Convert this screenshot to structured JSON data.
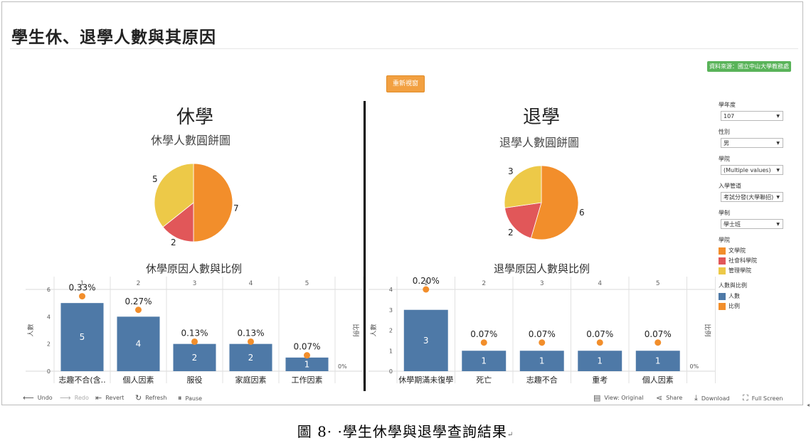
{
  "dashboard": {
    "title": "學生休、退學人數與其原因",
    "source": "資料來源：國立中山大學教務處",
    "reset_button": "重新視窗"
  },
  "colors": {
    "orange": "#f28e2b",
    "red": "#e15759",
    "yellow": "#edc948",
    "blue": "#4e79a7",
    "green_badge": "#59b359"
  },
  "leave": {
    "big_title": "休學",
    "pie_title": "休學人數圓餅圖",
    "pie_labels": [
      "7",
      "2",
      "5"
    ],
    "bar_title": "休學原因人數與比例",
    "columns": [
      "1",
      "2",
      "3",
      "4",
      "5"
    ],
    "y_ticks": [
      "6",
      "4",
      "2",
      "0"
    ],
    "y_axis_label": "人數",
    "right_axis_label": "比例",
    "right_tick": "0%",
    "categories": [
      "志趣不合(含..",
      "個人因素",
      "服役",
      "家庭因素",
      "工作因素"
    ],
    "bar_values": [
      "5",
      "4",
      "2",
      "2",
      "1"
    ],
    "ratio_labels": [
      "0.33%",
      "0.27%",
      "0.13%",
      "0.13%",
      "0.07%"
    ]
  },
  "withdraw": {
    "big_title": "退學",
    "pie_title": "退學人數圓餅圖",
    "pie_labels": [
      "6",
      "2",
      "3"
    ],
    "bar_title": "退學原因人數與比例",
    "columns": [
      "1",
      "2",
      "3",
      "4",
      "5"
    ],
    "y_ticks": [
      "4",
      "3",
      "2",
      "1",
      "0"
    ],
    "y_axis_label": "人數",
    "right_axis_label": "比例",
    "right_tick": "0%",
    "categories": [
      "休學期滿未復學",
      "死亡",
      "志趣不合",
      "重考",
      "個人因素"
    ],
    "bar_values": [
      "3",
      "1",
      "1",
      "1",
      "1"
    ],
    "ratio_labels": [
      "0.20%",
      "0.07%",
      "0.07%",
      "0.07%",
      "0.07%"
    ]
  },
  "chart_data": [
    {
      "type": "pie",
      "title": "休學人數圓餅圖",
      "categories": [
        "文學院",
        "社會科學院",
        "管理學院"
      ],
      "values": [
        7,
        2,
        5
      ]
    },
    {
      "type": "pie",
      "title": "退學人數圓餅圖",
      "categories": [
        "文學院",
        "社會科學院",
        "管理學院"
      ],
      "values": [
        6,
        2,
        3
      ]
    },
    {
      "type": "bar",
      "title": "休學原因人數與比例",
      "categories": [
        "志趣不合(含..",
        "個人因素",
        "服役",
        "家庭因素",
        "工作因素"
      ],
      "series": [
        {
          "name": "人數",
          "values": [
            5,
            4,
            2,
            2,
            1
          ]
        },
        {
          "name": "比例",
          "values": [
            0.33,
            0.27,
            0.13,
            0.13,
            0.07
          ]
        }
      ],
      "ylabel": "人數",
      "ylim": [
        0,
        6
      ]
    },
    {
      "type": "bar",
      "title": "退學原因人數與比例",
      "categories": [
        "休學期滿未復學",
        "死亡",
        "志趣不合",
        "重考",
        "個人因素"
      ],
      "series": [
        {
          "name": "人數",
          "values": [
            3,
            1,
            1,
            1,
            1
          ]
        },
        {
          "name": "比例",
          "values": [
            0.2,
            0.07,
            0.07,
            0.07,
            0.07
          ]
        }
      ],
      "ylabel": "人數",
      "ylim": [
        0,
        4
      ]
    }
  ],
  "filters": [
    {
      "label": "學年度",
      "value": "107"
    },
    {
      "label": "性別",
      "value": "男"
    },
    {
      "label": "學院",
      "value": "(Multiple values)"
    },
    {
      "label": "入學管道",
      "value": "考試分發(大學聯招)"
    },
    {
      "label": "學制",
      "value": "學士班"
    }
  ],
  "legend_college": {
    "title": "學院",
    "items": [
      "文學院",
      "社會科學院",
      "管理學院"
    ]
  },
  "legend_measure": {
    "title": "人數與比例",
    "items": [
      "人數",
      "比例"
    ]
  },
  "toolbar": {
    "undo": "Undo",
    "redo": "Redo",
    "revert": "Revert",
    "refresh": "Refresh",
    "pause": "Pause",
    "view": "View: Original",
    "share": "Share",
    "download": "Download",
    "fullscreen": "Full Screen"
  },
  "caption": {
    "text": "圖 8· ·學生休學與退學查詢結果",
    "tail": "↵"
  }
}
